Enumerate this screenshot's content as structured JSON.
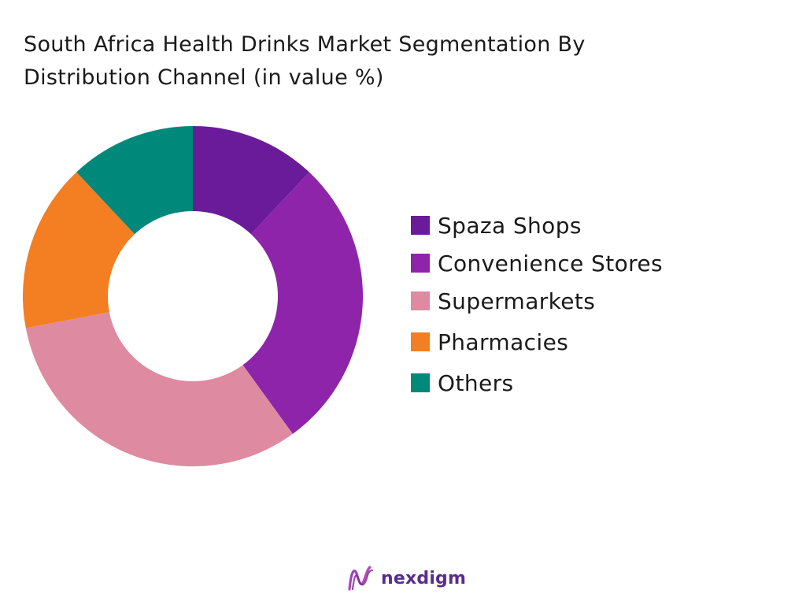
{
  "title_lines": [
    "South Africa Health Drinks Market Segmentation By",
    "Distribution Channel (in value %)"
  ],
  "brand": {
    "name": "nexdigm",
    "icon": "nexdigm-logo-icon"
  },
  "chart_data": {
    "type": "pie",
    "variant": "donut",
    "title": "South Africa Health Drinks Market Segmentation By Distribution Channel (in value %)",
    "start_angle_deg": 0,
    "direction": "clockwise",
    "legend_position": "right",
    "categories": [
      "Spaza Shops",
      "Convenience Stores",
      "Supermarkets",
      "Pharmacies",
      "Others"
    ],
    "values": [
      12,
      28,
      32,
      16,
      12
    ],
    "colors": [
      "#6a1b9a",
      "#8e24aa",
      "#de8aa0",
      "#f47e22",
      "#00897b"
    ]
  }
}
